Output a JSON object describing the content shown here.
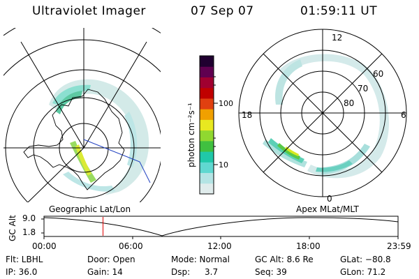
{
  "header": {
    "instrument": "Ultraviolet Imager",
    "date": "07 Sep 07",
    "time": "01:59:11 UT"
  },
  "colorbar": {
    "unit_label": "photon cm⁻²s⁻¹",
    "ticks": [
      "100",
      "10"
    ],
    "colors": [
      "#e0ecec",
      "#b4e4e4",
      "#60d8d0",
      "#20c8a8",
      "#40c040",
      "#90d830",
      "#e8e820",
      "#f0a000",
      "#e04010",
      "#c00000",
      "#a00030",
      "#600050",
      "#200030"
    ]
  },
  "polar_view": {
    "lat_labels": [
      "80",
      "70",
      "60"
    ],
    "mlt_labels": {
      "top": "12",
      "left": "18",
      "right": "6",
      "bottom": "0"
    }
  },
  "timeline": {
    "axis_label": "GC Alt",
    "y_ticks": [
      "9.0",
      "1.8"
    ],
    "left_caption": "Geographic Lat/Lon",
    "right_caption": "Apex MLat/MLT",
    "x_ticks": [
      "00:00",
      "06:00",
      "12:00",
      "18:00",
      "23:59"
    ],
    "current_time_fraction": 0.1666
  },
  "info": {
    "filter": "Flt: LBHL",
    "door": "Door: Open",
    "mode": "Mode: Normal",
    "gc_alt": "GC Alt: 8.6 Re",
    "glat": "GLat: −80.8",
    "ip": "IP: 36.0",
    "gain": "Gain: 14",
    "dsp_label": "Dsp:",
    "dsp_value": "3.7",
    "seq": "Seq: 39",
    "glon": "GLon: 71.2"
  }
}
